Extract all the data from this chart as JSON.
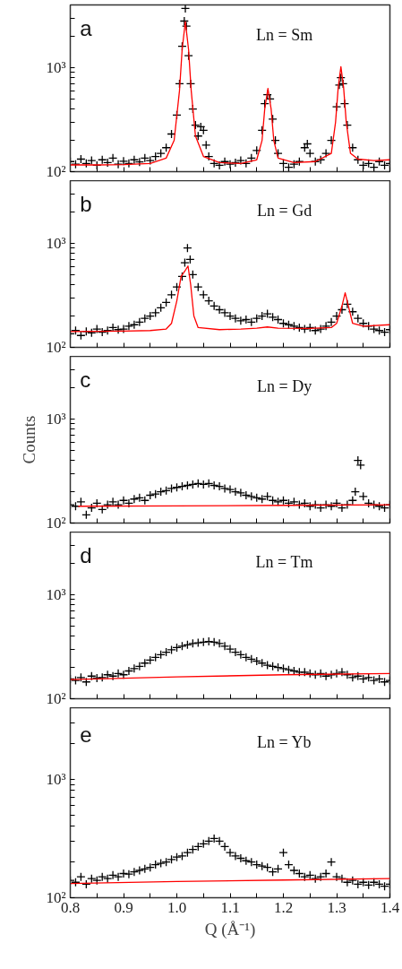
{
  "chart_data": [
    {
      "type": "scatter",
      "log": "y",
      "tick_labels": "y",
      "annotations": [
        "a",
        "Ln = Sm"
      ],
      "xlim": [
        0.8,
        1.4
      ],
      "ylim": [
        100,
        4000
      ],
      "xticks": [
        0.8,
        0.85,
        0.9,
        0.95,
        1.0,
        1.05,
        1.1,
        1.15,
        1.2,
        1.25,
        1.3,
        1.35,
        1.4
      ],
      "yticks": [
        {
          "value": 100,
          "label": "10²"
        },
        {
          "value": 1000,
          "label": "10³"
        },
        {
          "value": 200,
          "label": null
        },
        {
          "value": 300,
          "label": null
        },
        {
          "value": 400,
          "label": null
        },
        {
          "value": 500,
          "label": null
        },
        {
          "value": 600,
          "label": null
        },
        {
          "value": 700,
          "label": null
        },
        {
          "value": 800,
          "label": null
        },
        {
          "value": 900,
          "label": null
        },
        {
          "value": 2000,
          "label": null
        },
        {
          "value": 3000,
          "label": null
        }
      ],
      "series": [
        {
          "type": "scatter",
          "marker": "cross",
          "color": "#000000",
          "x": [
            0.8,
            0.81,
            0.82,
            0.83,
            0.84,
            0.85,
            0.86,
            0.87,
            0.88,
            0.89,
            0.9,
            0.91,
            0.92,
            0.93,
            0.94,
            0.95,
            0.96,
            0.97,
            0.98,
            0.99,
            1.0,
            1.005,
            1.01,
            1.014,
            1.016,
            1.018,
            1.022,
            1.026,
            1.03,
            1.035,
            1.04,
            1.045,
            1.05,
            1.055,
            1.06,
            1.07,
            1.08,
            1.09,
            1.1,
            1.11,
            1.12,
            1.13,
            1.14,
            1.15,
            1.16,
            1.165,
            1.17,
            1.175,
            1.18,
            1.185,
            1.19,
            1.2,
            1.21,
            1.22,
            1.23,
            1.24,
            1.245,
            1.25,
            1.26,
            1.27,
            1.28,
            1.29,
            1.3,
            1.305,
            1.308,
            1.312,
            1.315,
            1.32,
            1.33,
            1.34,
            1.35,
            1.36,
            1.37,
            1.38,
            1.39,
            1.4
          ],
          "values": [
            125,
            118,
            132,
            120,
            128,
            115,
            130,
            122,
            135,
            118,
            126,
            120,
            130,
            124,
            135,
            128,
            140,
            150,
            170,
            230,
            350,
            700,
            1600,
            2800,
            3700,
            2500,
            1300,
            700,
            400,
            280,
            220,
            270,
            250,
            180,
            140,
            120,
            115,
            125,
            118,
            122,
            128,
            120,
            135,
            160,
            250,
            450,
            550,
            500,
            320,
            200,
            150,
            120,
            110,
            118,
            125,
            170,
            185,
            150,
            125,
            130,
            150,
            200,
            420,
            680,
            800,
            700,
            450,
            280,
            170,
            130,
            115,
            120,
            110,
            125,
            115,
            120
          ]
        },
        {
          "type": "line",
          "marker": "none",
          "color": "#ff0000",
          "x": [
            0.8,
            0.85,
            0.9,
            0.95,
            0.98,
            0.995,
            1.005,
            1.01,
            1.016,
            1.022,
            1.027,
            1.035,
            1.05,
            1.08,
            1.12,
            1.15,
            1.16,
            1.165,
            1.171,
            1.177,
            1.182,
            1.19,
            1.22,
            1.26,
            1.29,
            1.298,
            1.303,
            1.308,
            1.313,
            1.318,
            1.326,
            1.34,
            1.37,
            1.4
          ],
          "values": [
            116,
            116,
            117,
            120,
            135,
            200,
            600,
            1500,
            2760,
            1500,
            600,
            220,
            140,
            122,
            120,
            130,
            200,
            400,
            630,
            400,
            200,
            135,
            122,
            125,
            150,
            300,
            650,
            1020,
            650,
            300,
            150,
            132,
            128,
            130
          ]
        }
      ]
    },
    {
      "type": "scatter",
      "log": "y",
      "tick_labels": "y",
      "annotations": [
        "b",
        "Ln = Gd"
      ],
      "xlim": [
        0.8,
        1.4
      ],
      "ylim": [
        100,
        4000
      ],
      "xticks": [
        0.8,
        0.85,
        0.9,
        0.95,
        1.0,
        1.05,
        1.1,
        1.15,
        1.2,
        1.25,
        1.3,
        1.35,
        1.4
      ],
      "yticks": [
        {
          "value": 100,
          "label": "10²"
        },
        {
          "value": 1000,
          "label": "10³"
        },
        {
          "value": 200,
          "label": null
        },
        {
          "value": 300,
          "label": null
        },
        {
          "value": 400,
          "label": null
        },
        {
          "value": 500,
          "label": null
        },
        {
          "value": 600,
          "label": null
        },
        {
          "value": 700,
          "label": null
        },
        {
          "value": 800,
          "label": null
        },
        {
          "value": 900,
          "label": null
        },
        {
          "value": 2000,
          "label": null
        },
        {
          "value": 3000,
          "label": null
        }
      ],
      "series": [
        {
          "type": "scatter",
          "marker": "cross",
          "color": "#000000",
          "x": [
            0.8,
            0.81,
            0.82,
            0.83,
            0.84,
            0.85,
            0.86,
            0.87,
            0.88,
            0.89,
            0.9,
            0.91,
            0.92,
            0.93,
            0.94,
            0.95,
            0.96,
            0.97,
            0.98,
            0.99,
            1.0,
            1.01,
            1.015,
            1.02,
            1.025,
            1.03,
            1.04,
            1.05,
            1.06,
            1.07,
            1.08,
            1.09,
            1.1,
            1.11,
            1.12,
            1.13,
            1.14,
            1.15,
            1.16,
            1.17,
            1.18,
            1.19,
            1.2,
            1.21,
            1.22,
            1.23,
            1.24,
            1.25,
            1.26,
            1.27,
            1.28,
            1.29,
            1.3,
            1.31,
            1.32,
            1.33,
            1.34,
            1.35,
            1.36,
            1.37,
            1.38,
            1.39,
            1.4
          ],
          "values": [
            135,
            145,
            130,
            142,
            138,
            150,
            140,
            145,
            155,
            148,
            150,
            160,
            165,
            175,
            190,
            200,
            215,
            240,
            270,
            320,
            380,
            480,
            650,
            900,
            700,
            500,
            380,
            320,
            280,
            250,
            230,
            215,
            200,
            190,
            180,
            185,
            175,
            190,
            200,
            210,
            195,
            185,
            170,
            165,
            160,
            155,
            150,
            155,
            145,
            150,
            160,
            175,
            200,
            230,
            260,
            220,
            190,
            170,
            160,
            150,
            145,
            140,
            148
          ]
        },
        {
          "type": "line",
          "marker": "none",
          "color": "#ff0000",
          "x": [
            0.8,
            0.9,
            0.95,
            0.98,
            0.99,
            1.0,
            1.008,
            1.015,
            1.021,
            1.026,
            1.032,
            1.04,
            1.08,
            1.12,
            1.15,
            1.17,
            1.19,
            1.25,
            1.29,
            1.3,
            1.31,
            1.316,
            1.322,
            1.33,
            1.35,
            1.4
          ],
          "values": [
            142,
            143,
            145,
            150,
            170,
            280,
            480,
            540,
            605,
            400,
            200,
            155,
            148,
            150,
            153,
            157,
            153,
            152,
            155,
            170,
            250,
            335,
            250,
            170,
            160,
            165
          ]
        }
      ]
    },
    {
      "type": "scatter",
      "log": "y",
      "tick_labels": "y",
      "ylabel": "Counts",
      "annotations": [
        "c",
        "Ln = Dy"
      ],
      "xlim": [
        0.8,
        1.4
      ],
      "ylim": [
        100,
        4000
      ],
      "xticks": [
        0.8,
        0.85,
        0.9,
        0.95,
        1.0,
        1.05,
        1.1,
        1.15,
        1.2,
        1.25,
        1.3,
        1.35,
        1.4
      ],
      "yticks": [
        {
          "value": 100,
          "label": "10²"
        },
        {
          "value": 1000,
          "label": "10³"
        },
        {
          "value": 200,
          "label": null
        },
        {
          "value": 300,
          "label": null
        },
        {
          "value": 400,
          "label": null
        },
        {
          "value": 500,
          "label": null
        },
        {
          "value": 600,
          "label": null
        },
        {
          "value": 700,
          "label": null
        },
        {
          "value": 800,
          "label": null
        },
        {
          "value": 900,
          "label": null
        },
        {
          "value": 2000,
          "label": null
        },
        {
          "value": 3000,
          "label": null
        }
      ],
      "series": [
        {
          "type": "scatter",
          "marker": "cross",
          "color": "#000000",
          "x": [
            0.8,
            0.81,
            0.82,
            0.83,
            0.84,
            0.85,
            0.86,
            0.87,
            0.88,
            0.89,
            0.9,
            0.91,
            0.92,
            0.93,
            0.94,
            0.95,
            0.96,
            0.97,
            0.98,
            0.99,
            1.0,
            1.01,
            1.02,
            1.03,
            1.04,
            1.05,
            1.06,
            1.07,
            1.08,
            1.09,
            1.1,
            1.11,
            1.12,
            1.13,
            1.14,
            1.15,
            1.16,
            1.17,
            1.18,
            1.19,
            1.2,
            1.21,
            1.22,
            1.23,
            1.24,
            1.25,
            1.26,
            1.27,
            1.28,
            1.29,
            1.3,
            1.31,
            1.32,
            1.33,
            1.335,
            1.34,
            1.345,
            1.35,
            1.36,
            1.37,
            1.38,
            1.39,
            1.4
          ],
          "values": [
            150,
            145,
            160,
            120,
            140,
            155,
            135,
            150,
            160,
            150,
            165,
            155,
            170,
            175,
            165,
            185,
            190,
            200,
            205,
            215,
            220,
            225,
            230,
            235,
            240,
            235,
            240,
            230,
            225,
            215,
            210,
            200,
            195,
            185,
            180,
            175,
            170,
            180,
            165,
            160,
            165,
            155,
            160,
            150,
            155,
            145,
            150,
            140,
            150,
            145,
            155,
            140,
            150,
            165,
            200,
            400,
            360,
            180,
            155,
            150,
            145,
            140,
            150
          ]
        },
        {
          "type": "line",
          "marker": "none",
          "color": "#ff0000",
          "x": [
            0.815,
            1.0,
            1.2,
            1.4
          ],
          "values": [
            145,
            146,
            148,
            150
          ]
        }
      ]
    },
    {
      "type": "scatter",
      "log": "y",
      "tick_labels": "y",
      "annotations": [
        "d",
        "Ln = Tm"
      ],
      "xlim": [
        0.8,
        1.4
      ],
      "ylim": [
        100,
        4000
      ],
      "xticks": [
        0.8,
        0.85,
        0.9,
        0.95,
        1.0,
        1.05,
        1.1,
        1.15,
        1.2,
        1.25,
        1.3,
        1.35,
        1.4
      ],
      "yticks": [
        {
          "value": 100,
          "label": "10²"
        },
        {
          "value": 1000,
          "label": "10³"
        },
        {
          "value": 200,
          "label": null
        },
        {
          "value": 300,
          "label": null
        },
        {
          "value": 400,
          "label": null
        },
        {
          "value": 500,
          "label": null
        },
        {
          "value": 600,
          "label": null
        },
        {
          "value": 700,
          "label": null
        },
        {
          "value": 800,
          "label": null
        },
        {
          "value": 900,
          "label": null
        },
        {
          "value": 2000,
          "label": null
        },
        {
          "value": 3000,
          "label": null
        }
      ],
      "series": [
        {
          "type": "scatter",
          "marker": "cross",
          "color": "#000000",
          "x": [
            0.8,
            0.81,
            0.82,
            0.83,
            0.84,
            0.85,
            0.86,
            0.87,
            0.88,
            0.89,
            0.9,
            0.91,
            0.92,
            0.93,
            0.94,
            0.95,
            0.96,
            0.97,
            0.98,
            0.99,
            1.0,
            1.01,
            1.02,
            1.03,
            1.04,
            1.05,
            1.06,
            1.07,
            1.08,
            1.09,
            1.1,
            1.11,
            1.12,
            1.13,
            1.14,
            1.15,
            1.16,
            1.17,
            1.18,
            1.19,
            1.2,
            1.21,
            1.22,
            1.23,
            1.24,
            1.25,
            1.26,
            1.27,
            1.28,
            1.29,
            1.3,
            1.31,
            1.32,
            1.33,
            1.34,
            1.35,
            1.36,
            1.37,
            1.38,
            1.39,
            1.4
          ],
          "values": [
            155,
            150,
            160,
            145,
            165,
            158,
            160,
            170,
            165,
            175,
            170,
            185,
            195,
            205,
            220,
            235,
            250,
            265,
            280,
            295,
            310,
            320,
            330,
            340,
            345,
            350,
            355,
            350,
            340,
            320,
            300,
            280,
            265,
            250,
            240,
            230,
            220,
            210,
            205,
            200,
            195,
            190,
            185,
            180,
            180,
            175,
            170,
            175,
            165,
            170,
            175,
            180,
            170,
            160,
            165,
            155,
            160,
            150,
            155,
            145,
            150
          ]
        },
        {
          "type": "line",
          "marker": "none",
          "color": "#ff0000",
          "x": [
            0.8,
            1.0,
            1.2,
            1.4
          ],
          "values": [
            153,
            162,
            170,
            175
          ]
        }
      ]
    },
    {
      "type": "scatter",
      "log": "y",
      "xlabel": "Q (Å⁻¹)",
      "annotations": [
        "e",
        "Ln = Yb"
      ],
      "xlim": [
        0.8,
        1.4
      ],
      "ylim": [
        100,
        4000
      ],
      "xticks": [
        0.8,
        0.9,
        {
          "value": 1.0,
          "label": "1.0"
        },
        1.1,
        1.2,
        1.3,
        1.4,
        {
          "value": 0.85,
          "label": null
        },
        {
          "value": 0.95,
          "label": null
        },
        {
          "value": 1.05,
          "label": null
        },
        {
          "value": 1.15,
          "label": null
        },
        {
          "value": 1.25,
          "label": null
        },
        {
          "value": 1.35,
          "label": null
        }
      ],
      "yticks": [
        {
          "value": 100,
          "label": "10²"
        },
        {
          "value": 1000,
          "label": "10³"
        },
        {
          "value": 200,
          "label": null
        },
        {
          "value": 300,
          "label": null
        },
        {
          "value": 400,
          "label": null
        },
        {
          "value": 500,
          "label": null
        },
        {
          "value": 600,
          "label": null
        },
        {
          "value": 700,
          "label": null
        },
        {
          "value": 800,
          "label": null
        },
        {
          "value": 900,
          "label": null
        },
        {
          "value": 2000,
          "label": null
        },
        {
          "value": 3000,
          "label": null
        }
      ],
      "series": [
        {
          "type": "scatter",
          "marker": "cross",
          "color": "#000000",
          "x": [
            0.8,
            0.81,
            0.82,
            0.83,
            0.84,
            0.85,
            0.86,
            0.87,
            0.88,
            0.89,
            0.9,
            0.91,
            0.92,
            0.93,
            0.94,
            0.95,
            0.96,
            0.97,
            0.98,
            0.99,
            1.0,
            1.01,
            1.02,
            1.03,
            1.04,
            1.05,
            1.06,
            1.07,
            1.08,
            1.09,
            1.1,
            1.11,
            1.12,
            1.13,
            1.14,
            1.15,
            1.16,
            1.17,
            1.18,
            1.19,
            1.2,
            1.21,
            1.22,
            1.23,
            1.24,
            1.25,
            1.26,
            1.27,
            1.28,
            1.29,
            1.3,
            1.31,
            1.32,
            1.33,
            1.34,
            1.35,
            1.36,
            1.37,
            1.38,
            1.39,
            1.4
          ],
          "values": [
            140,
            135,
            150,
            130,
            145,
            140,
            150,
            145,
            155,
            150,
            160,
            158,
            165,
            170,
            175,
            180,
            190,
            195,
            200,
            210,
            220,
            225,
            240,
            255,
            270,
            285,
            300,
            316,
            300,
            270,
            240,
            225,
            215,
            205,
            200,
            190,
            185,
            180,
            165,
            175,
            240,
            190,
            170,
            160,
            150,
            155,
            145,
            150,
            160,
            200,
            150,
            145,
            135,
            140,
            130,
            135,
            128,
            135,
            130,
            125,
            130
          ]
        },
        {
          "type": "line",
          "marker": "none",
          "color": "#ff0000",
          "x": [
            0.8,
            1.0,
            1.2,
            1.4
          ],
          "values": [
            132,
            137,
            141,
            145
          ]
        }
      ]
    }
  ]
}
